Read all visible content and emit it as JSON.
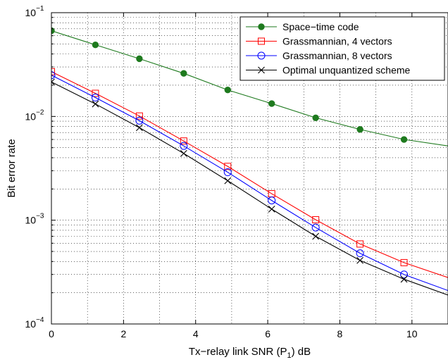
{
  "chart_data": {
    "type": "line",
    "title": "",
    "xlabel_parts": [
      "Tx−relay link SNR (P",
      "1",
      ") dB"
    ],
    "ylabel": "Bit error rate",
    "xlim": [
      0,
      11
    ],
    "ylim": [
      0.0001,
      0.1
    ],
    "yscale": "log",
    "grid": true,
    "legend_position": "top-right",
    "x_ticks": [
      0,
      2,
      4,
      6,
      8,
      10
    ],
    "x_tick_labels": [
      "0",
      "2",
      "4",
      "6",
      "8",
      "10"
    ],
    "y_ticks": [
      {
        "value": 0.1,
        "base": "10",
        "exp": "−1"
      },
      {
        "value": 0.01,
        "base": "10",
        "exp": "−2"
      },
      {
        "value": 0.001,
        "base": "10",
        "exp": "−3"
      },
      {
        "value": 0.0001,
        "base": "10",
        "exp": "−4"
      }
    ],
    "x": [
      0,
      1.22,
      2.44,
      3.67,
      4.89,
      6.11,
      7.33,
      8.56,
      9.78,
      11
    ],
    "series": [
      {
        "name": "Space−time code",
        "color": "#1e7a1e",
        "marker": "filled-circle",
        "values": [
          0.067,
          0.049,
          0.036,
          0.026,
          0.018,
          0.0133,
          0.0097,
          0.0075,
          0.006,
          0.0052
        ]
      },
      {
        "name": "Grassmannian, 4 vectors",
        "color": "#ff0000",
        "marker": "square",
        "values": [
          0.027,
          0.0167,
          0.0101,
          0.0058,
          0.0033,
          0.0018,
          0.00101,
          0.00059,
          0.00039,
          0.00028
        ]
      },
      {
        "name": "Grassmannian, 8 vectors",
        "color": "#0000ff",
        "marker": "open-circle",
        "values": [
          0.025,
          0.0152,
          0.0091,
          0.0052,
          0.0029,
          0.00155,
          0.00085,
          0.00048,
          0.0003,
          0.00021
        ]
      },
      {
        "name": "Optimal unquantized scheme",
        "color": "#000000",
        "marker": "x",
        "values": [
          0.0215,
          0.0132,
          0.0078,
          0.0044,
          0.0024,
          0.00128,
          0.0007,
          0.00041,
          0.00027,
          0.00019
        ]
      }
    ]
  }
}
